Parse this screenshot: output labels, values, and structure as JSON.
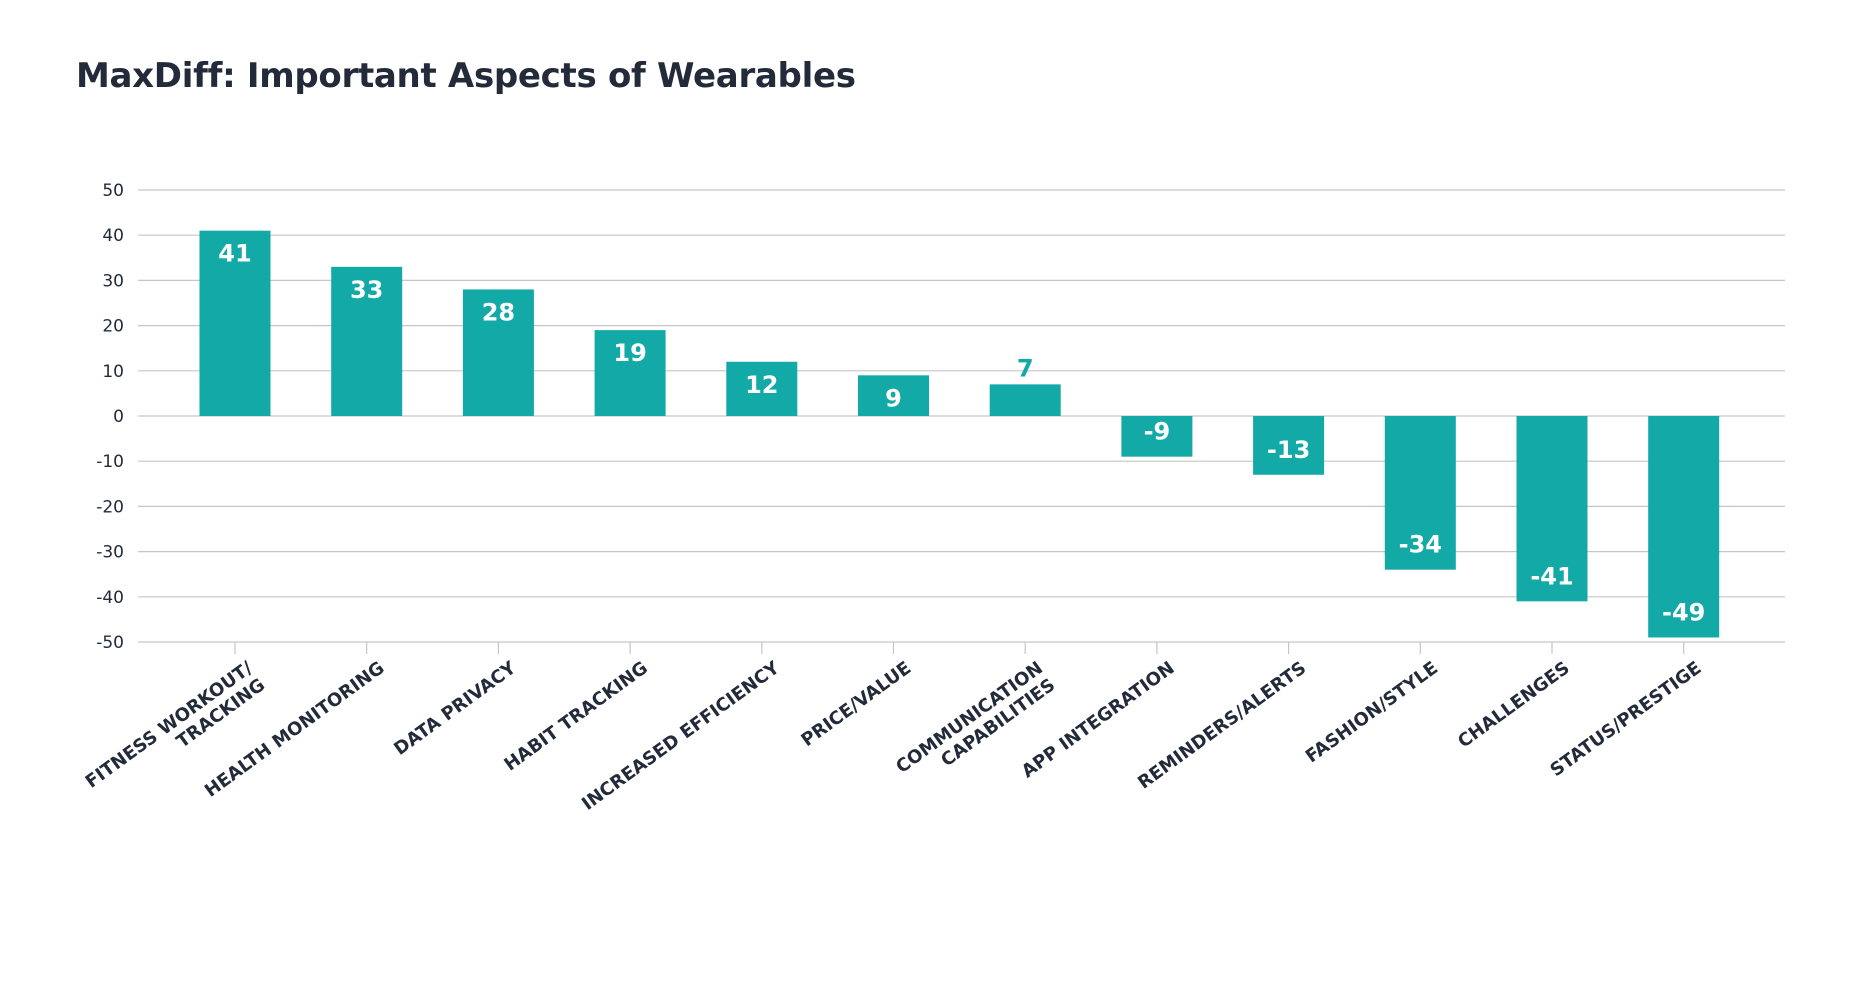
{
  "chart_data": {
    "type": "bar",
    "title": "MaxDiff: Important Aspects of Wearables",
    "xlabel": "",
    "ylabel": "",
    "ylim": [
      -50,
      50
    ],
    "yticks": [
      50,
      40,
      30,
      20,
      10,
      0,
      -10,
      -20,
      -30,
      -40,
      -50
    ],
    "grid": true,
    "legend": "none",
    "categories": [
      [
        "FITNESS WORKOUT/",
        "TRACKING"
      ],
      [
        "HEALTH MONITORING"
      ],
      [
        "DATA PRIVACY"
      ],
      [
        "HABIT TRACKING"
      ],
      [
        "INCREASED EFFICIENCY"
      ],
      [
        "PRICE/VALUE"
      ],
      [
        "COMMUNICATION",
        "CAPABILITIES"
      ],
      [
        "APP INTEGRATION"
      ],
      [
        "REMINDERS/ALERTS"
      ],
      [
        "FASHION/STYLE"
      ],
      [
        "CHALLENGES"
      ],
      [
        "STATUS/PRESTIGE"
      ]
    ],
    "values": [
      41,
      33,
      28,
      19,
      12,
      9,
      7,
      -9,
      -13,
      -34,
      -41,
      -49
    ],
    "bar_color": "#12a9a7",
    "label_color_inside": "#ffffff",
    "label_color_outside": "#12a9a7",
    "axis_text_color": "#232b3a",
    "grid_color": "#c6c6c6"
  }
}
